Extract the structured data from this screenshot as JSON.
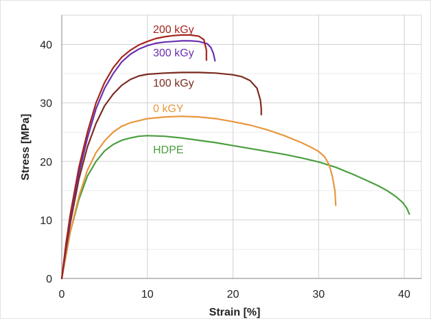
{
  "chart_data": {
    "type": "line",
    "title": "",
    "xlabel": "Strain [%]",
    "ylabel": "Stress [MPa]",
    "xlim": [
      0,
      42
    ],
    "ylim": [
      0,
      45
    ],
    "xticks": [
      0,
      10,
      20,
      30,
      40
    ],
    "yticks": [
      0,
      10,
      20,
      30,
      40
    ],
    "grid": true,
    "legend": "inline labels",
    "series": [
      {
        "name": "200 kGy",
        "color": "#a3241c",
        "x": [
          0,
          0.5,
          1,
          2,
          3,
          4,
          5,
          6,
          7,
          8,
          9,
          10,
          11,
          12,
          13,
          14,
          15,
          16,
          16.6,
          16.9,
          16.9
        ],
        "y": [
          0,
          6,
          11,
          19,
          25,
          30,
          33.5,
          36,
          37.8,
          39,
          39.9,
          40.5,
          41,
          41.3,
          41.5,
          41.6,
          41.6,
          41.4,
          40.8,
          39,
          37.3
        ]
      },
      {
        "name": "300 kGy",
        "color": "#6a2fb0",
        "x": [
          0,
          0.5,
          1,
          2,
          3,
          4,
          5,
          6,
          7,
          8,
          9,
          10,
          11,
          12,
          13,
          14,
          15,
          16,
          17,
          17.4,
          17.7,
          17.9
        ],
        "y": [
          0,
          5.5,
          10.5,
          18,
          24,
          29,
          32.5,
          35,
          37,
          38.3,
          39.2,
          39.8,
          40.2,
          40.4,
          40.5,
          40.6,
          40.6,
          40.5,
          40.1,
          39.5,
          38.5,
          37.2
        ]
      },
      {
        "name": "100 kGy",
        "color": "#7b2a20",
        "x": [
          0,
          0.5,
          1,
          2,
          3,
          4,
          5,
          6,
          7,
          8,
          9,
          10,
          12,
          14,
          16,
          18,
          20,
          21,
          22,
          22.8,
          23.2,
          23.3,
          23.3
        ],
        "y": [
          0,
          5,
          9.5,
          17,
          22.5,
          26.5,
          29.5,
          31.5,
          33,
          34,
          34.6,
          34.9,
          35.1,
          35.2,
          35.2,
          35.1,
          34.8,
          34.5,
          33.8,
          32.5,
          30.5,
          29,
          28
        ]
      },
      {
        "name": "0 kGY",
        "color": "#e8963c",
        "x": [
          0,
          0.5,
          1,
          2,
          3,
          4,
          5,
          6,
          7,
          8,
          10,
          12,
          14,
          16,
          18,
          20,
          22,
          24,
          26,
          28,
          29,
          30,
          30.7,
          31.2,
          31.6,
          31.9,
          32
        ],
        "y": [
          0,
          4,
          8,
          14,
          18.5,
          21.5,
          23.5,
          25,
          26,
          26.6,
          27.3,
          27.6,
          27.7,
          27.6,
          27.3,
          26.8,
          26.2,
          25.4,
          24.4,
          23.2,
          22.5,
          21.7,
          20.8,
          19.5,
          17.5,
          15,
          12.5
        ]
      },
      {
        "name": "HDPE",
        "color": "#4a9e3e",
        "x": [
          0,
          0.5,
          1,
          2,
          3,
          4,
          5,
          6,
          7,
          8,
          9,
          10,
          12,
          14,
          16,
          18,
          20,
          22,
          24,
          26,
          28,
          30,
          32,
          34,
          36,
          37,
          38,
          39,
          39.8,
          40.3,
          40.6
        ],
        "y": [
          0,
          4,
          8,
          13.5,
          17.5,
          20,
          21.8,
          22.9,
          23.6,
          24,
          24.3,
          24.4,
          24.3,
          24,
          23.6,
          23.2,
          22.7,
          22.2,
          21.7,
          21.2,
          20.6,
          19.9,
          19,
          17.8,
          16.5,
          15.8,
          15,
          14,
          13,
          12,
          11
        ]
      }
    ]
  }
}
